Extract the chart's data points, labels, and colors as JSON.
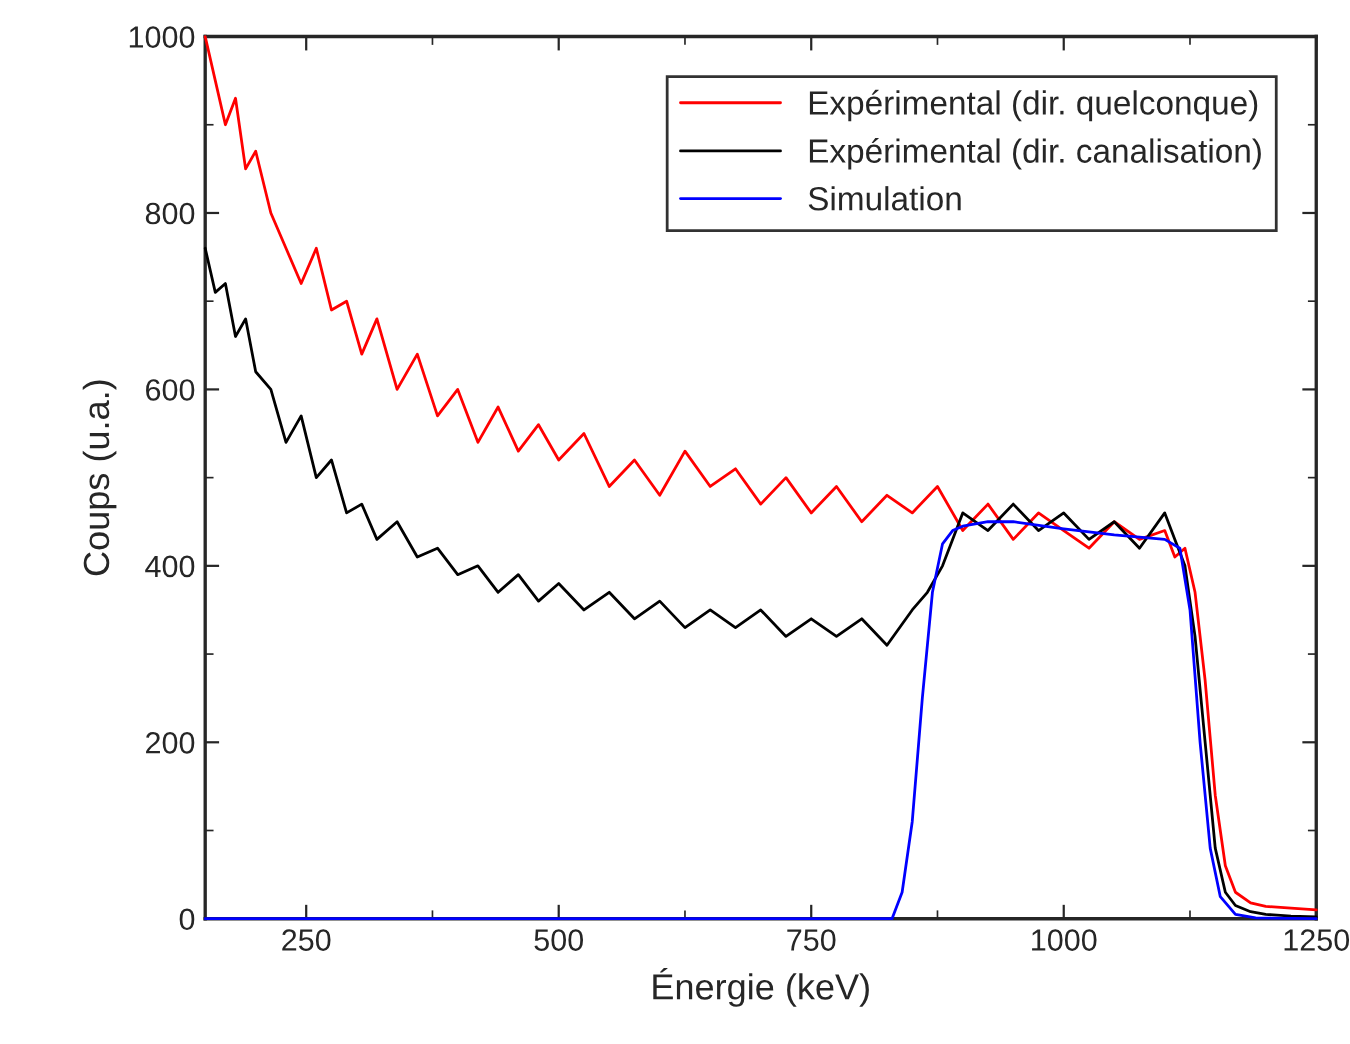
{
  "chart_data": {
    "type": "line",
    "xlabel": "Énergie (keV)",
    "ylabel": "Coups (u.a.)",
    "xlim": [
      150,
      1250
    ],
    "xticks": [
      250,
      500,
      750,
      1000,
      1250
    ],
    "ylim": [
      0,
      1000
    ],
    "yticks": [
      0,
      200,
      400,
      600,
      800,
      1000
    ],
    "grid": false,
    "legend": "top right",
    "line_style": "solid",
    "marker": "none",
    "series": [
      {
        "name": "Expérimental (dir. quelconque)",
        "color": "#ff0000",
        "x": [
          150,
          160,
          170,
          180,
          190,
          200,
          215,
          230,
          245,
          260,
          275,
          290,
          305,
          320,
          340,
          360,
          380,
          400,
          420,
          440,
          460,
          480,
          500,
          525,
          550,
          575,
          600,
          625,
          650,
          675,
          700,
          725,
          750,
          775,
          800,
          825,
          850,
          875,
          900,
          925,
          950,
          975,
          1000,
          1025,
          1050,
          1075,
          1100,
          1110,
          1120,
          1130,
          1140,
          1150,
          1160,
          1170,
          1185,
          1200,
          1225,
          1250
        ],
        "values": [
          1000,
          950,
          900,
          930,
          850,
          870,
          800,
          760,
          720,
          760,
          690,
          700,
          640,
          680,
          600,
          640,
          570,
          600,
          540,
          580,
          530,
          560,
          520,
          550,
          490,
          520,
          480,
          530,
          490,
          510,
          470,
          500,
          460,
          490,
          450,
          480,
          460,
          490,
          440,
          470,
          430,
          460,
          440,
          420,
          450,
          430,
          440,
          410,
          420,
          370,
          270,
          140,
          60,
          30,
          18,
          14,
          12,
          10
        ]
      },
      {
        "name": "Expérimental (dir. canalisation)",
        "color": "#000000",
        "x": [
          150,
          160,
          170,
          180,
          190,
          200,
          215,
          230,
          245,
          260,
          275,
          290,
          305,
          320,
          340,
          360,
          380,
          400,
          420,
          440,
          460,
          480,
          500,
          525,
          550,
          575,
          600,
          625,
          650,
          675,
          700,
          725,
          750,
          775,
          800,
          825,
          850,
          865,
          880,
          890,
          900,
          925,
          950,
          975,
          1000,
          1025,
          1050,
          1075,
          1100,
          1110,
          1120,
          1130,
          1140,
          1150,
          1160,
          1170,
          1185,
          1200,
          1225,
          1250
        ],
        "values": [
          760,
          710,
          720,
          660,
          680,
          620,
          600,
          540,
          570,
          500,
          520,
          460,
          470,
          430,
          450,
          410,
          420,
          390,
          400,
          370,
          390,
          360,
          380,
          350,
          370,
          340,
          360,
          330,
          350,
          330,
          350,
          320,
          340,
          320,
          340,
          310,
          350,
          370,
          400,
          430,
          460,
          440,
          470,
          440,
          460,
          430,
          450,
          420,
          460,
          430,
          400,
          320,
          200,
          80,
          30,
          15,
          8,
          5,
          3,
          2
        ]
      },
      {
        "name": "Simulation",
        "color": "#0000ff",
        "x": [
          150,
          830,
          840,
          850,
          860,
          870,
          880,
          890,
          900,
          925,
          950,
          1000,
          1050,
          1100,
          1115,
          1125,
          1135,
          1145,
          1155,
          1170,
          1190,
          1250
        ],
        "values": [
          0,
          0,
          30,
          110,
          250,
          370,
          425,
          440,
          445,
          450,
          450,
          442,
          435,
          430,
          420,
          350,
          200,
          80,
          25,
          5,
          1,
          0
        ]
      }
    ]
  }
}
